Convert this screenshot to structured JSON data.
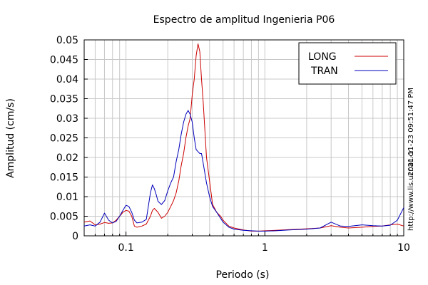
{
  "chart_data": {
    "type": "line",
    "title": "Espectro de amplitud Ingenieria P06",
    "xlabel": "Periodo (s)",
    "ylabel": "Amplitud (cm/s)",
    "xscale": "log",
    "xlim": [
      0.05,
      10
    ],
    "ylim": [
      0,
      0.05
    ],
    "x_ticks": [
      0.1,
      1,
      10
    ],
    "x_tick_labels": [
      "0.1",
      "1",
      "10"
    ],
    "y_ticks": [
      0,
      0.005,
      0.01,
      0.015,
      0.02,
      0.025,
      0.03,
      0.035,
      0.04,
      0.045,
      0.05
    ],
    "y_tick_labels": [
      "0",
      "0.005",
      "0.01",
      "0.015",
      "0.02",
      "0.025",
      "0.03",
      "0.035",
      "0.04",
      "0.045",
      "0.05"
    ],
    "grid": true,
    "legend_position": "top-right",
    "side_text": {
      "timestamp": "2021-11-23 09:51:47 PM",
      "url": "http://www.lis.ucr.ac.cr"
    },
    "series": [
      {
        "name": "LONG",
        "color": "#cc0000",
        "x": [
          0.05,
          0.055,
          0.06,
          0.065,
          0.07,
          0.075,
          0.08,
          0.085,
          0.09,
          0.095,
          0.1,
          0.105,
          0.11,
          0.115,
          0.12,
          0.13,
          0.14,
          0.15,
          0.155,
          0.16,
          0.17,
          0.18,
          0.19,
          0.2,
          0.21,
          0.22,
          0.23,
          0.24,
          0.25,
          0.26,
          0.27,
          0.28,
          0.29,
          0.3,
          0.31,
          0.32,
          0.33,
          0.34,
          0.35,
          0.36,
          0.37,
          0.38,
          0.4,
          0.42,
          0.45,
          0.48,
          0.5,
          0.55,
          0.6,
          0.7,
          0.8,
          0.9,
          1.0,
          1.2,
          1.5,
          2.0,
          2.5,
          3.0,
          3.5,
          4.0,
          5.0,
          6.0,
          7.0,
          8.0,
          9.0,
          10.0
        ],
        "y": [
          0.0035,
          0.0038,
          0.0028,
          0.003,
          0.0034,
          0.0032,
          0.0033,
          0.004,
          0.005,
          0.006,
          0.0065,
          0.0063,
          0.005,
          0.0025,
          0.0022,
          0.0025,
          0.003,
          0.005,
          0.0065,
          0.007,
          0.006,
          0.0045,
          0.005,
          0.006,
          0.0075,
          0.009,
          0.011,
          0.014,
          0.018,
          0.021,
          0.025,
          0.028,
          0.03,
          0.036,
          0.04,
          0.046,
          0.049,
          0.047,
          0.04,
          0.034,
          0.027,
          0.02,
          0.014,
          0.008,
          0.006,
          0.005,
          0.004,
          0.0025,
          0.002,
          0.0015,
          0.0012,
          0.0012,
          0.0013,
          0.0014,
          0.0016,
          0.0018,
          0.002,
          0.0026,
          0.0022,
          0.002,
          0.0022,
          0.0024,
          0.0025,
          0.0028,
          0.003,
          0.0025
        ]
      },
      {
        "name": "TRAN",
        "color": "#0000bb",
        "x": [
          0.05,
          0.055,
          0.06,
          0.065,
          0.07,
          0.075,
          0.08,
          0.085,
          0.09,
          0.095,
          0.1,
          0.105,
          0.11,
          0.115,
          0.12,
          0.13,
          0.14,
          0.15,
          0.155,
          0.16,
          0.165,
          0.17,
          0.18,
          0.19,
          0.2,
          0.21,
          0.22,
          0.23,
          0.24,
          0.25,
          0.26,
          0.27,
          0.28,
          0.29,
          0.3,
          0.31,
          0.32,
          0.33,
          0.34,
          0.35,
          0.36,
          0.37,
          0.38,
          0.4,
          0.42,
          0.45,
          0.48,
          0.5,
          0.55,
          0.6,
          0.7,
          0.8,
          0.9,
          1.0,
          1.2,
          1.5,
          2.0,
          2.5,
          3.0,
          3.5,
          4.0,
          5.0,
          6.0,
          7.0,
          8.0,
          9.0,
          10.0
        ],
        "y": [
          0.0025,
          0.0028,
          0.0025,
          0.0035,
          0.0058,
          0.004,
          0.0033,
          0.0037,
          0.005,
          0.0065,
          0.0078,
          0.0075,
          0.006,
          0.004,
          0.0033,
          0.0035,
          0.0042,
          0.011,
          0.013,
          0.012,
          0.0105,
          0.0088,
          0.008,
          0.009,
          0.0115,
          0.0135,
          0.015,
          0.019,
          0.022,
          0.026,
          0.029,
          0.031,
          0.032,
          0.031,
          0.029,
          0.025,
          0.022,
          0.0215,
          0.021,
          0.021,
          0.0185,
          0.016,
          0.0135,
          0.01,
          0.0075,
          0.006,
          0.0045,
          0.0035,
          0.0022,
          0.0017,
          0.0014,
          0.0013,
          0.0012,
          0.0012,
          0.0013,
          0.0015,
          0.0017,
          0.002,
          0.0035,
          0.0025,
          0.0024,
          0.0028,
          0.0026,
          0.0025,
          0.0027,
          0.004,
          0.0072
        ]
      }
    ]
  }
}
